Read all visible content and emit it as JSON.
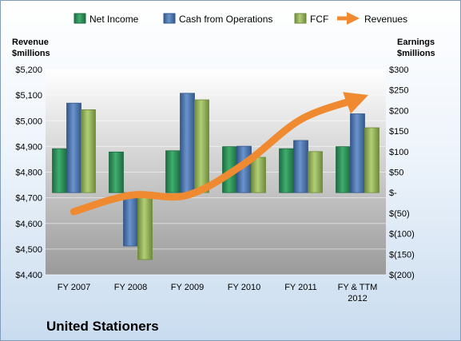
{
  "chart_data": {
    "type": "bar",
    "title": "United Stationers",
    "categories": [
      "FY 2007",
      "FY 2008",
      "FY 2009",
      "FY 2010",
      "FY 2011",
      "FY & TTM 2012"
    ],
    "category_lines": [
      [
        "FY 2007"
      ],
      [
        "FY 2008"
      ],
      [
        "FY 2009"
      ],
      [
        "FY 2010"
      ],
      [
        "FY 2011"
      ],
      [
        "FY & TTM",
        "2012"
      ]
    ],
    "series": [
      {
        "name": "Net Income",
        "axis": "right",
        "color": "#2e8b57",
        "values": [
          107,
          99,
          102,
          112,
          107,
          112
        ]
      },
      {
        "name": "Cash from Operations",
        "axis": "right",
        "color": "#4f81bd",
        "values": [
          218,
          -130,
          242,
          113,
          127,
          192
        ]
      },
      {
        "name": "FCF",
        "axis": "right",
        "color": "#9bbb59",
        "values": [
          202,
          -163,
          226,
          86,
          100,
          158
        ]
      },
      {
        "name": "Revenues",
        "axis": "left",
        "type": "line",
        "color": "#f08a30",
        "values": [
          4646,
          4710,
          4710,
          4832,
          5005,
          5085
        ]
      }
    ],
    "left_axis": {
      "label": [
        "Revenue",
        "$millions"
      ],
      "ylim": [
        4400,
        5200
      ],
      "ticks": [
        "$4,400",
        "$4,500",
        "$4,600",
        "$4,700",
        "$4,800",
        "$4,900",
        "$5,000",
        "$5,100",
        "$5,200"
      ]
    },
    "right_axis": {
      "label": [
        "Earnings",
        "$millions"
      ],
      "ylim": [
        -200,
        300
      ],
      "ticks": [
        "$(200)",
        "$(150)",
        "$(100)",
        "$(50)",
        "$-",
        "$50",
        "$100",
        "$150",
        "$200",
        "$250",
        "$300"
      ]
    },
    "legend_position": "top",
    "grid": true
  }
}
